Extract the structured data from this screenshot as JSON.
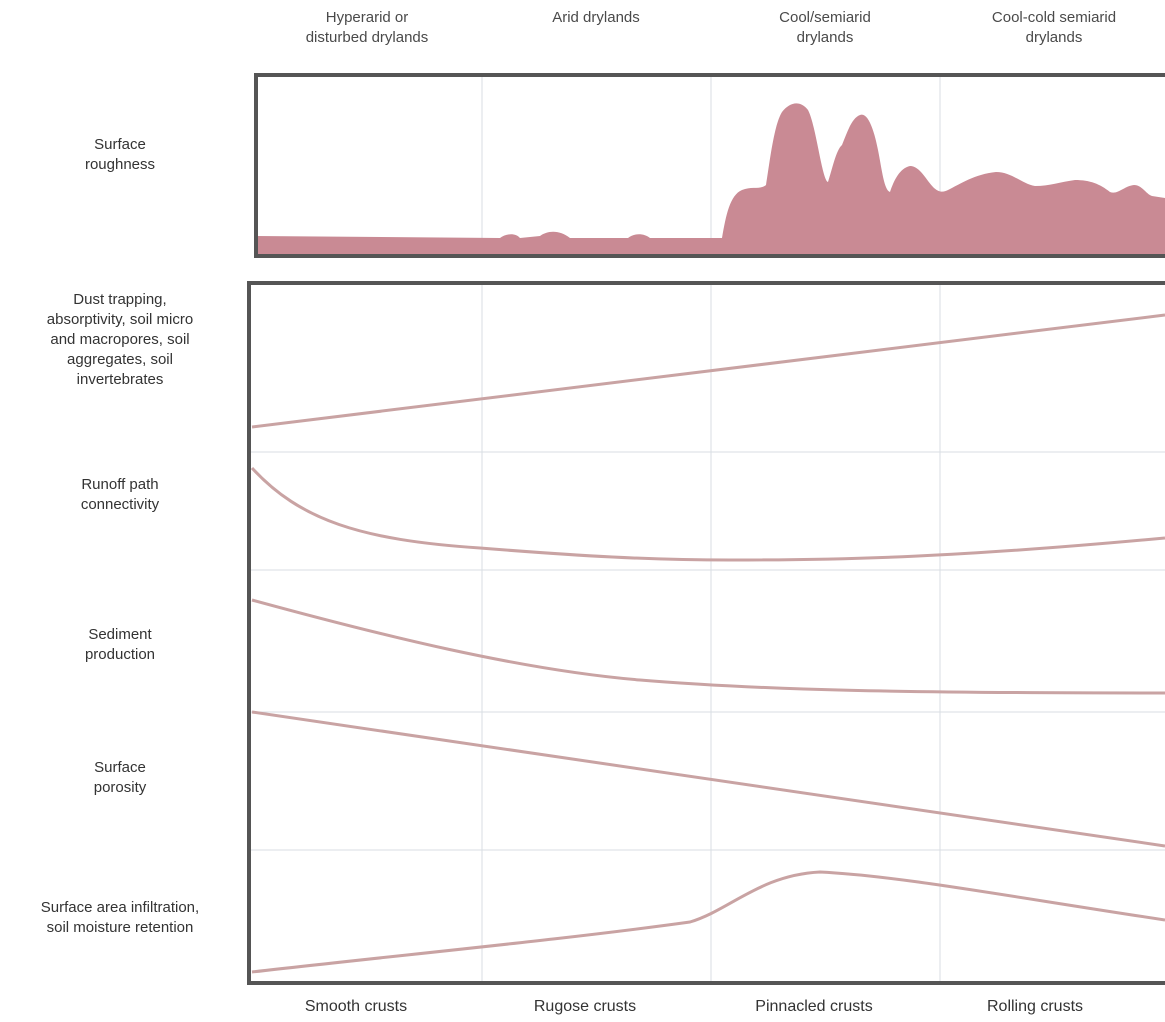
{
  "columns": {
    "top": [
      "Hyperarid or\ndisturbed drylands",
      "Arid drylands",
      "Cool/semiarid\ndrylands",
      "Cool-cold semiarid\ndrylands"
    ],
    "bottom": [
      "Smooth crusts",
      "Rugose crusts",
      "Pinnacled crusts",
      "Rolling crusts"
    ]
  },
  "rows": [
    "Surface\nroughness",
    "Dust trapping,\nabsorptivity, soil micro\nand macropores, soil\naggregates, soil\ninvertebrates",
    "Runoff path\nconnectivity",
    "Sediment\nproduction",
    "Surface\nporosity",
    "Surface area infiltration,\nsoil moisture retention"
  ],
  "colors": {
    "roughness_fill": "#c98a94",
    "trend_line": "#c9a3a3",
    "frame": "#555555",
    "grid": "#d9dde3"
  }
}
